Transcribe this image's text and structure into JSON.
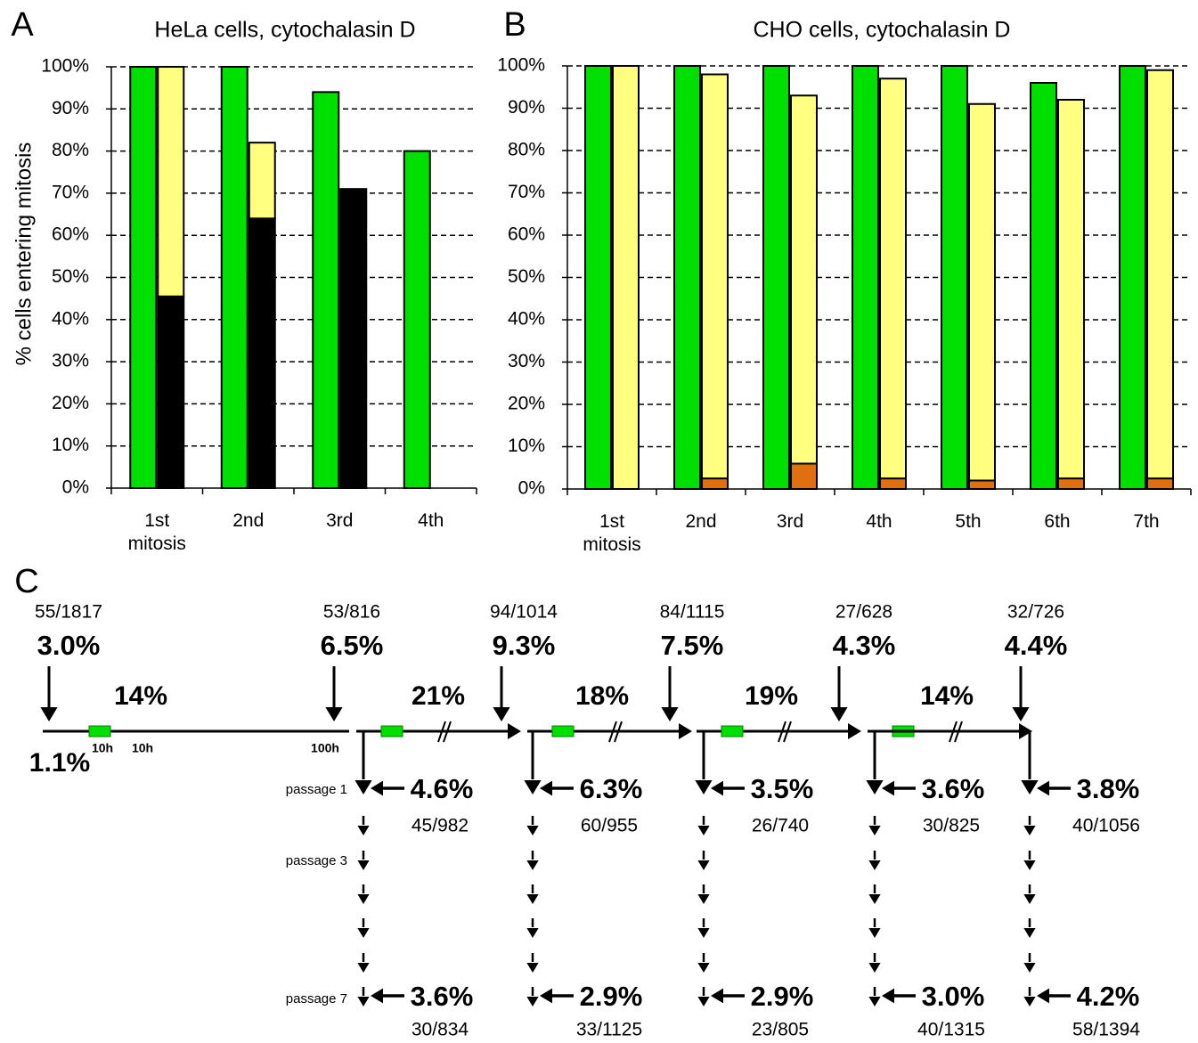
{
  "chart_data": [
    {
      "type": "bar",
      "label": "A",
      "title": "HeLa cells, cytochalasin D",
      "y_label": "% cells entering mitosis",
      "categories": [
        "1st mitosis",
        "2nd",
        "3rd",
        "4th"
      ],
      "series": [
        {
          "color": "#00e000",
          "stack": 0,
          "values": [
            100,
            100,
            94,
            80
          ]
        },
        {
          "color": "#000000",
          "stack": 1,
          "values": [
            45.5,
            64,
            71,
            null
          ]
        },
        {
          "color": "#ffff80",
          "stack": 1,
          "values": [
            54.5,
            18,
            null,
            null
          ]
        }
      ],
      "ylim": [
        0,
        100
      ],
      "grid": true,
      "yticks": [
        {
          "value": 0,
          "label": "0%"
        },
        {
          "value": 10,
          "label": "10%"
        },
        {
          "value": 20,
          "label": "20%"
        },
        {
          "value": 30,
          "label": "30%"
        },
        {
          "value": 40,
          "label": "40%"
        },
        {
          "value": 50,
          "label": "50%"
        },
        {
          "value": 60,
          "label": "60%"
        },
        {
          "value": 70,
          "label": "70%"
        },
        {
          "value": 80,
          "label": "80%"
        },
        {
          "value": 90,
          "label": "90%"
        },
        {
          "value": 100,
          "label": "100%"
        }
      ]
    },
    {
      "type": "bar",
      "label": "B",
      "title": "CHO cells,  cytochalasin D",
      "categories": [
        "1st mitosis",
        "2nd",
        "3rd",
        "4th",
        "5th",
        "6th",
        "7th"
      ],
      "series": [
        {
          "color": "#00e000",
          "stack": 0,
          "values": [
            100,
            100,
            100,
            100,
            100,
            96,
            100
          ]
        },
        {
          "color": "#e0700f",
          "stack": 1,
          "values": [
            0,
            2.5,
            6,
            2.5,
            2,
            2.5,
            2.5
          ]
        },
        {
          "color": "#ffff80",
          "stack": 1,
          "values": [
            100,
            95.5,
            87,
            94.5,
            89,
            89.5,
            96.5
          ]
        }
      ],
      "ylim": [
        0,
        100
      ],
      "grid": true,
      "yticks": [
        {
          "value": 0,
          "label": "0%"
        },
        {
          "value": 10,
          "label": "10%"
        },
        {
          "value": 20,
          "label": "20%"
        },
        {
          "value": 30,
          "label": "30%"
        },
        {
          "value": 40,
          "label": "40%"
        },
        {
          "value": 50,
          "label": "50%"
        },
        {
          "value": 60,
          "label": "60%"
        },
        {
          "value": 70,
          "label": "70%"
        },
        {
          "value": 80,
          "label": "80%"
        },
        {
          "value": 90,
          "label": "90%"
        },
        {
          "value": 100,
          "label": "100%"
        }
      ]
    }
  ],
  "diagram": {
    "label": "C",
    "top": [
      {
        "fraction": "55/1817",
        "percent": "3.0%"
      },
      {
        "fraction": "53/816",
        "percent": "6.5%"
      },
      {
        "fraction": "94/1014",
        "percent": "9.3%"
      },
      {
        "fraction": "84/1115",
        "percent": "7.5%"
      },
      {
        "fraction": "27/628",
        "percent": "4.3%"
      },
      {
        "fraction": "32/726",
        "percent": "4.4%"
      }
    ],
    "start_rate": "1.1%",
    "rates": [
      "14%",
      "21%",
      "18%",
      "19%",
      "14%"
    ],
    "times": [
      "10h",
      "10h",
      "100h"
    ],
    "passages": [
      "passage 1",
      "passage 3",
      "passage 7"
    ],
    "columns": [
      {
        "p1": {
          "percent": "4.6%",
          "fraction": "45/982"
        },
        "p7": {
          "percent": "3.6%",
          "fraction": "30/834"
        }
      },
      {
        "p1": {
          "percent": "6.3%",
          "fraction": "60/955"
        },
        "p7": {
          "percent": "2.9%",
          "fraction": "33/1125"
        }
      },
      {
        "p1": {
          "percent": "3.5%",
          "fraction": "26/740"
        },
        "p7": {
          "percent": "2.9%",
          "fraction": "23/805"
        }
      },
      {
        "p1": {
          "percent": "3.6%",
          "fraction": "30/825"
        },
        "p7": {
          "percent": "3.0%",
          "fraction": "40/1315"
        }
      },
      {
        "p1": {
          "percent": "3.8%",
          "fraction": "40/1056"
        },
        "p7": {
          "percent": "4.2%",
          "fraction": "58/1394"
        }
      }
    ]
  }
}
